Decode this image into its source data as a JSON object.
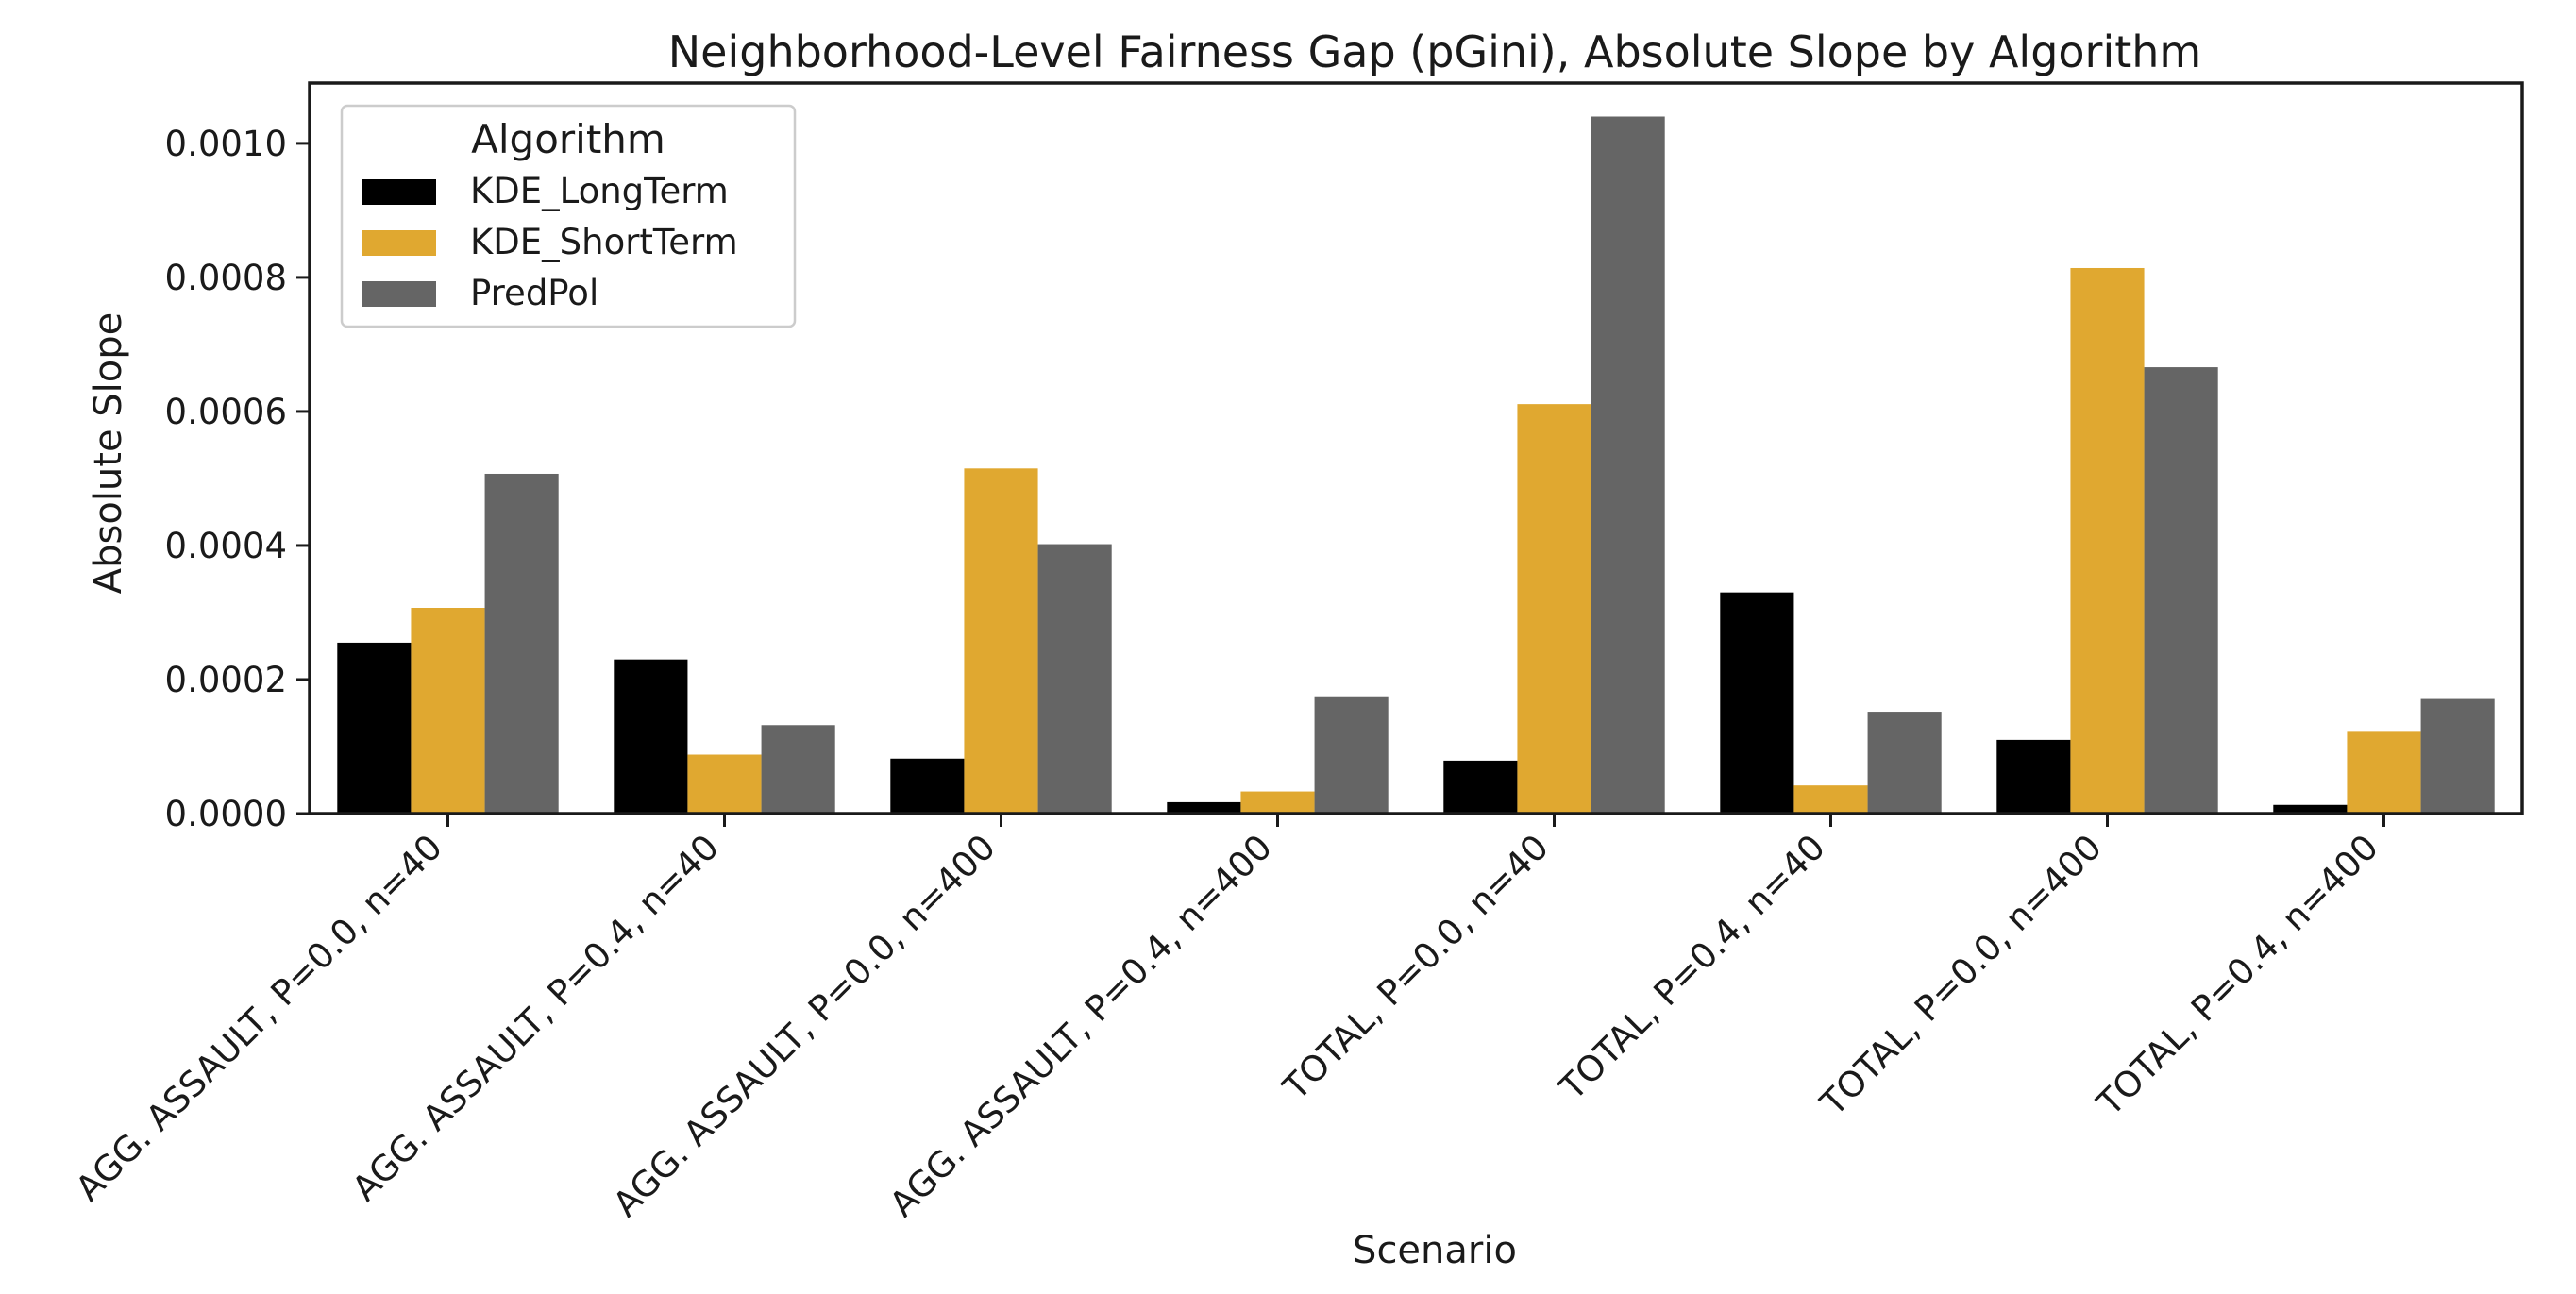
{
  "chart_data": {
    "type": "bar",
    "title": "Neighborhood-Level Fairness Gap (pGini), Absolute Slope by Algorithm",
    "xlabel": "Scenario",
    "ylabel": "Absolute Slope",
    "ylim": [
      0,
      0.00109
    ],
    "yticks": [
      "0.0000",
      "0.0002",
      "0.0004",
      "0.0006",
      "0.0008",
      "0.0010"
    ],
    "ytick_values": [
      0,
      0.0002,
      0.0004,
      0.0006,
      0.0008,
      0.001
    ],
    "grid": false,
    "legend_position": "top-left",
    "legend_title": "Algorithm",
    "categories": [
      "AGG. ASSAULT, P=0.0, n=40",
      "AGG. ASSAULT, P=0.4, n=40",
      "AGG. ASSAULT, P=0.0, n=400",
      "AGG. ASSAULT, P=0.4, n=400",
      "TOTAL, P=0.0, n=40",
      "TOTAL, P=0.4, n=40",
      "TOTAL, P=0.0, n=400",
      "TOTAL, P=0.4, n=400"
    ],
    "series": [
      {
        "name": "KDE_LongTerm",
        "color": "#000000",
        "values": [
          0.000255,
          0.00023,
          8.2e-05,
          1.7e-05,
          7.9e-05,
          0.00033,
          0.00011,
          1.3e-05
        ]
      },
      {
        "name": "KDE_ShortTerm",
        "color": "#E0A830",
        "values": [
          0.000307,
          8.8e-05,
          0.000515,
          3.3e-05,
          0.000611,
          4.2e-05,
          0.000814,
          0.000122
        ]
      },
      {
        "name": "PredPol",
        "color": "#656565",
        "values": [
          0.000507,
          0.000132,
          0.000402,
          0.000175,
          0.00104,
          0.000152,
          0.000666,
          0.000171
        ]
      }
    ]
  }
}
